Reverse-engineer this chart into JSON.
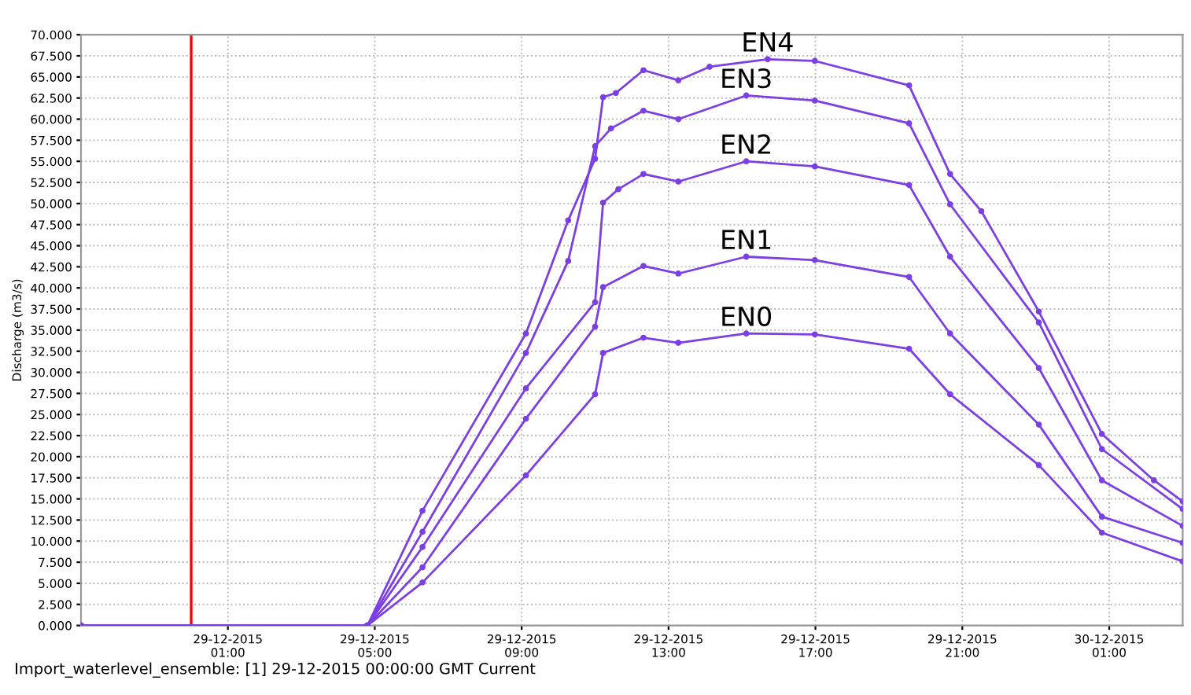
{
  "chart_data": {
    "type": "line",
    "ylabel": "Discharge (m3/s)",
    "annotations": [
      "Import_waterlevel_ensemble: [1] 29-12-2015 00:00:00 GMT Current"
    ],
    "xlim": [
      "2015-12-28T21:00",
      "2015-12-30T03:00"
    ],
    "xticks": [
      {
        "value": "2015-12-29T01:00",
        "label": "29-12-2015\n01:00"
      },
      {
        "value": "2015-12-29T05:00",
        "label": "29-12-2015\n05:00"
      },
      {
        "value": "2015-12-29T09:00",
        "label": "29-12-2015\n09:00"
      },
      {
        "value": "2015-12-29T13:00",
        "label": "29-12-2015\n13:00"
      },
      {
        "value": "2015-12-29T17:00",
        "label": "29-12-2015\n17:00"
      },
      {
        "value": "2015-12-29T21:00",
        "label": "29-12-2015\n21:00"
      },
      {
        "value": "2015-12-30T01:00",
        "label": "30-12-2015\n01:00"
      }
    ],
    "ylim": [
      0,
      70
    ],
    "yticks": [
      {
        "value": 0,
        "label": "0.000"
      },
      {
        "value": 2.5,
        "label": "2.500"
      },
      {
        "value": 5,
        "label": "5.000"
      },
      {
        "value": 7.5,
        "label": "7.500"
      },
      {
        "value": 10,
        "label": "10.000"
      },
      {
        "value": 12.5,
        "label": "12.500"
      },
      {
        "value": 15,
        "label": "15.000"
      },
      {
        "value": 17.5,
        "label": "17.500"
      },
      {
        "value": 20,
        "label": "20.000"
      },
      {
        "value": 22.5,
        "label": "22.500"
      },
      {
        "value": 25,
        "label": "25.000"
      },
      {
        "value": 27.5,
        "label": "27.500"
      },
      {
        "value": 30,
        "label": "30.000"
      },
      {
        "value": 32.5,
        "label": "32.500"
      },
      {
        "value": 35,
        "label": "35.000"
      },
      {
        "value": 37.5,
        "label": "37.500"
      },
      {
        "value": 40,
        "label": "40.000"
      },
      {
        "value": 42.5,
        "label": "42.500"
      },
      {
        "value": 45,
        "label": "45.000"
      },
      {
        "value": 47.5,
        "label": "47.500"
      },
      {
        "value": 50,
        "label": "50.000"
      },
      {
        "value": 52.5,
        "label": "52.500"
      },
      {
        "value": 55,
        "label": "55.000"
      },
      {
        "value": 57.5,
        "label": "57.500"
      },
      {
        "value": 60,
        "label": "60.000"
      },
      {
        "value": 62.5,
        "label": "62.500"
      },
      {
        "value": 65,
        "label": "65.000"
      },
      {
        "value": 67.5,
        "label": "67.500"
      },
      {
        "value": 70,
        "label": "70.000"
      }
    ],
    "grid": true,
    "marker": "circle",
    "line_style": "solid",
    "ref_lines": [
      {
        "axis": "x",
        "value": "2015-12-29T00:00",
        "color": "#ff0000"
      }
    ],
    "series": [
      {
        "name": "EN4",
        "color": "#7b3fe4",
        "x": [
          "2015-12-28T21:00",
          "2015-12-29T04:48",
          "2015-12-29T06:18",
          "2015-12-29T09:07",
          "2015-12-29T10:16",
          "2015-12-29T11:00",
          "2015-12-29T11:13",
          "2015-12-29T11:34",
          "2015-12-29T12:19",
          "2015-12-29T13:16",
          "2015-12-29T14:07",
          "2015-12-29T15:42",
          "2015-12-29T16:59",
          "2015-12-29T19:33",
          "2015-12-29T20:40",
          "2015-12-29T21:31",
          "2015-12-29T23:05",
          "2015-12-30T00:48",
          "2015-12-30T02:13",
          "2015-12-30T03:00"
        ],
        "values": [
          0,
          0,
          13.6,
          34.6,
          48.0,
          55.3,
          62.6,
          63.1,
          65.8,
          64.6,
          66.2,
          67.1,
          66.9,
          64.0,
          53.5,
          49.1,
          37.2,
          22.7,
          17.2,
          14.7
        ]
      },
      {
        "name": "EN3",
        "color": "#7b3fe4",
        "x": [
          "2015-12-28T21:00",
          "2015-12-29T04:48",
          "2015-12-29T06:18",
          "2015-12-29T09:07",
          "2015-12-29T10:16",
          "2015-12-29T11:00",
          "2015-12-29T11:26",
          "2015-12-29T12:19",
          "2015-12-29T13:16",
          "2015-12-29T15:07",
          "2015-12-29T16:59",
          "2015-12-29T19:33",
          "2015-12-29T20:40",
          "2015-12-29T23:05",
          "2015-12-30T00:48",
          "2015-12-30T03:00"
        ],
        "values": [
          0,
          0,
          11.1,
          32.3,
          43.2,
          56.8,
          58.9,
          61.0,
          60.0,
          62.8,
          62.2,
          59.5,
          49.9,
          35.9,
          20.9,
          13.8
        ]
      },
      {
        "name": "EN2",
        "color": "#7b3fe4",
        "x": [
          "2015-12-28T21:00",
          "2015-12-29T04:48",
          "2015-12-29T06:18",
          "2015-12-29T09:07",
          "2015-12-29T11:00",
          "2015-12-29T11:13",
          "2015-12-29T11:38",
          "2015-12-29T12:19",
          "2015-12-29T13:16",
          "2015-12-29T15:07",
          "2015-12-29T16:59",
          "2015-12-29T19:33",
          "2015-12-29T20:40",
          "2015-12-29T23:05",
          "2015-12-30T00:48",
          "2015-12-30T03:00"
        ],
        "values": [
          0,
          0,
          9.3,
          28.1,
          38.3,
          50.1,
          51.7,
          53.5,
          52.6,
          55.0,
          54.4,
          52.2,
          43.7,
          30.5,
          17.2,
          11.8
        ]
      },
      {
        "name": "EN1",
        "color": "#7b3fe4",
        "x": [
          "2015-12-28T21:00",
          "2015-12-29T04:48",
          "2015-12-29T06:18",
          "2015-12-29T09:07",
          "2015-12-29T11:00",
          "2015-12-29T11:13",
          "2015-12-29T12:19",
          "2015-12-29T13:16",
          "2015-12-29T15:07",
          "2015-12-29T16:59",
          "2015-12-29T19:33",
          "2015-12-29T20:40",
          "2015-12-29T23:05",
          "2015-12-30T00:48",
          "2015-12-30T03:00"
        ],
        "values": [
          0,
          0,
          6.9,
          24.5,
          35.4,
          40.1,
          42.6,
          41.7,
          43.7,
          43.3,
          41.3,
          34.6,
          23.8,
          12.9,
          9.8
        ]
      },
      {
        "name": "EN0",
        "color": "#7b3fe4",
        "x": [
          "2015-12-28T21:00",
          "2015-12-29T04:48",
          "2015-12-29T06:18",
          "2015-12-29T09:07",
          "2015-12-29T11:00",
          "2015-12-29T11:13",
          "2015-12-29T12:19",
          "2015-12-29T13:16",
          "2015-12-29T15:07",
          "2015-12-29T16:59",
          "2015-12-29T19:33",
          "2015-12-29T20:40",
          "2015-12-29T23:05",
          "2015-12-30T00:48",
          "2015-12-30T03:00"
        ],
        "values": [
          0,
          0,
          5.1,
          17.8,
          27.4,
          32.3,
          34.1,
          33.5,
          34.6,
          34.5,
          32.8,
          27.4,
          19.0,
          11.0,
          7.6
        ]
      }
    ]
  }
}
